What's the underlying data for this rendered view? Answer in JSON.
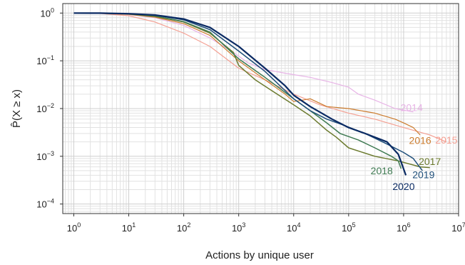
{
  "chart_data": {
    "type": "line",
    "xscale": "log",
    "yscale": "log",
    "xlim": [
      0.63,
      10000000
    ],
    "ylim": [
      6.31e-05,
      1.58
    ],
    "grid": true,
    "xlabel": "Actions by unique user",
    "ylabel": "P̂(X ≥ x)",
    "xticks": [
      {
        "value": 1,
        "base": "10",
        "exp": "0"
      },
      {
        "value": 10,
        "base": "10",
        "exp": "1"
      },
      {
        "value": 100,
        "base": "10",
        "exp": "2"
      },
      {
        "value": 1000,
        "base": "10",
        "exp": "3"
      },
      {
        "value": 10000,
        "base": "10",
        "exp": "4"
      },
      {
        "value": 100000,
        "base": "10",
        "exp": "5"
      },
      {
        "value": 1000000,
        "base": "10",
        "exp": "6"
      },
      {
        "value": 10000000,
        "base": "10",
        "exp": "7"
      }
    ],
    "yticks": [
      {
        "value": 1,
        "base": "10",
        "exp": "0"
      },
      {
        "value": 0.1,
        "base": "10",
        "exp": "−1"
      },
      {
        "value": 0.01,
        "base": "10",
        "exp": "−2"
      },
      {
        "value": 0.001,
        "base": "10",
        "exp": "−3"
      },
      {
        "value": 0.0001,
        "base": "10",
        "exp": "−4"
      }
    ],
    "series": [
      {
        "name": "2014",
        "color": "#e7b3e6",
        "width": 1.2,
        "label_at": [
          1400000,
          0.0088
        ],
        "points": [
          [
            1,
            1
          ],
          [
            3,
            0.99
          ],
          [
            10,
            0.93
          ],
          [
            30,
            0.8
          ],
          [
            100,
            0.55
          ],
          [
            300,
            0.3
          ],
          [
            800,
            0.15
          ],
          [
            1500,
            0.09
          ],
          [
            3000,
            0.066
          ],
          [
            7000,
            0.055
          ],
          [
            20000,
            0.045
          ],
          [
            50000,
            0.035
          ],
          [
            100000,
            0.028
          ],
          [
            150000,
            0.02
          ],
          [
            300000,
            0.015
          ],
          [
            700000,
            0.01
          ],
          [
            1500000,
            0.0085
          ]
        ]
      },
      {
        "name": "2015",
        "color": "#f4a093",
        "width": 1.2,
        "label_at": [
          6000000,
          0.00185
        ],
        "points": [
          [
            1,
            1
          ],
          [
            3,
            0.98
          ],
          [
            10,
            0.88
          ],
          [
            30,
            0.65
          ],
          [
            100,
            0.38
          ],
          [
            300,
            0.2
          ],
          [
            1000,
            0.07
          ],
          [
            3000,
            0.04
          ],
          [
            10000,
            0.02
          ],
          [
            30000,
            0.012
          ],
          [
            100000,
            0.008
          ],
          [
            300000,
            0.006
          ],
          [
            1000000,
            0.004
          ],
          [
            3000000,
            0.0028
          ],
          [
            6000000,
            0.002
          ]
        ]
      },
      {
        "name": "2016",
        "color": "#cc7c2e",
        "width": 1.2,
        "label_at": [
          2000000,
          0.0018
        ],
        "points": [
          [
            1,
            1
          ],
          [
            3,
            0.99
          ],
          [
            10,
            0.94
          ],
          [
            30,
            0.82
          ],
          [
            100,
            0.6
          ],
          [
            300,
            0.34
          ],
          [
            1000,
            0.1
          ],
          [
            3000,
            0.04
          ],
          [
            7000,
            0.02
          ],
          [
            10000,
            0.014
          ],
          [
            20000,
            0.016
          ],
          [
            40000,
            0.011
          ],
          [
            100000,
            0.01
          ],
          [
            300000,
            0.008
          ],
          [
            700000,
            0.006
          ],
          [
            1000000,
            0.005
          ],
          [
            1500000,
            0.004
          ],
          [
            2000000,
            0.0028
          ]
        ]
      },
      {
        "name": "2017",
        "color": "#6b7a2e",
        "width": 1.5,
        "label_at": [
          3000000,
          0.00066
        ],
        "points": [
          [
            1,
            1
          ],
          [
            3,
            0.99
          ],
          [
            10,
            0.95
          ],
          [
            30,
            0.85
          ],
          [
            100,
            0.65
          ],
          [
            300,
            0.38
          ],
          [
            800,
            0.15
          ],
          [
            1000,
            0.08
          ],
          [
            2000,
            0.04
          ],
          [
            5000,
            0.02
          ],
          [
            10000,
            0.012
          ],
          [
            20000,
            0.007
          ],
          [
            40000,
            0.0035
          ],
          [
            60000,
            0.0025
          ],
          [
            100000,
            0.0015
          ],
          [
            300000,
            0.001
          ],
          [
            800000,
            0.0008
          ],
          [
            2000000,
            0.0006
          ],
          [
            3000000,
            0.00058
          ]
        ]
      },
      {
        "name": "2018",
        "color": "#3f7a52",
        "width": 1.5,
        "label_at": [
          400000,
          0.00042
        ],
        "points": [
          [
            1,
            1
          ],
          [
            3,
            0.99
          ],
          [
            10,
            0.96
          ],
          [
            30,
            0.87
          ],
          [
            100,
            0.66
          ],
          [
            300,
            0.4
          ],
          [
            1000,
            0.11
          ],
          [
            3000,
            0.045
          ],
          [
            10000,
            0.016
          ],
          [
            20000,
            0.009
          ],
          [
            40000,
            0.005
          ],
          [
            70000,
            0.003
          ],
          [
            150000,
            0.0022
          ],
          [
            300000,
            0.0015
          ],
          [
            600000,
            0.001
          ],
          [
            800000,
            0.0008
          ],
          [
            900000,
            0.00055
          ]
        ]
      },
      {
        "name": "2019",
        "color": "#1f4f7a",
        "width": 1.5,
        "label_at": [
          2300000,
          0.00035
        ],
        "points": [
          [
            1,
            1
          ],
          [
            3,
            0.99
          ],
          [
            10,
            0.97
          ],
          [
            30,
            0.9
          ],
          [
            100,
            0.72
          ],
          [
            300,
            0.45
          ],
          [
            1000,
            0.16
          ],
          [
            3000,
            0.06
          ],
          [
            10000,
            0.016
          ],
          [
            20000,
            0.009
          ],
          [
            40000,
            0.006
          ],
          [
            80000,
            0.0045
          ],
          [
            200000,
            0.003
          ],
          [
            500000,
            0.0018
          ],
          [
            1000000,
            0.0012
          ],
          [
            1500000,
            0.0009
          ],
          [
            2200000,
            0.0005
          ]
        ]
      },
      {
        "name": "2020",
        "color": "#0a2a63",
        "width": 2.2,
        "label_at": [
          1000000,
          0.000195
        ],
        "points": [
          [
            1,
            1
          ],
          [
            3,
            0.995
          ],
          [
            10,
            0.97
          ],
          [
            30,
            0.91
          ],
          [
            100,
            0.75
          ],
          [
            300,
            0.5
          ],
          [
            1000,
            0.2
          ],
          [
            3000,
            0.07
          ],
          [
            7000,
            0.03
          ],
          [
            10000,
            0.019
          ],
          [
            20000,
            0.011
          ],
          [
            50000,
            0.006
          ],
          [
            100000,
            0.004
          ],
          [
            200000,
            0.003
          ],
          [
            500000,
            0.002
          ],
          [
            800000,
            0.0011
          ],
          [
            1100000,
            0.0004
          ]
        ]
      }
    ]
  }
}
